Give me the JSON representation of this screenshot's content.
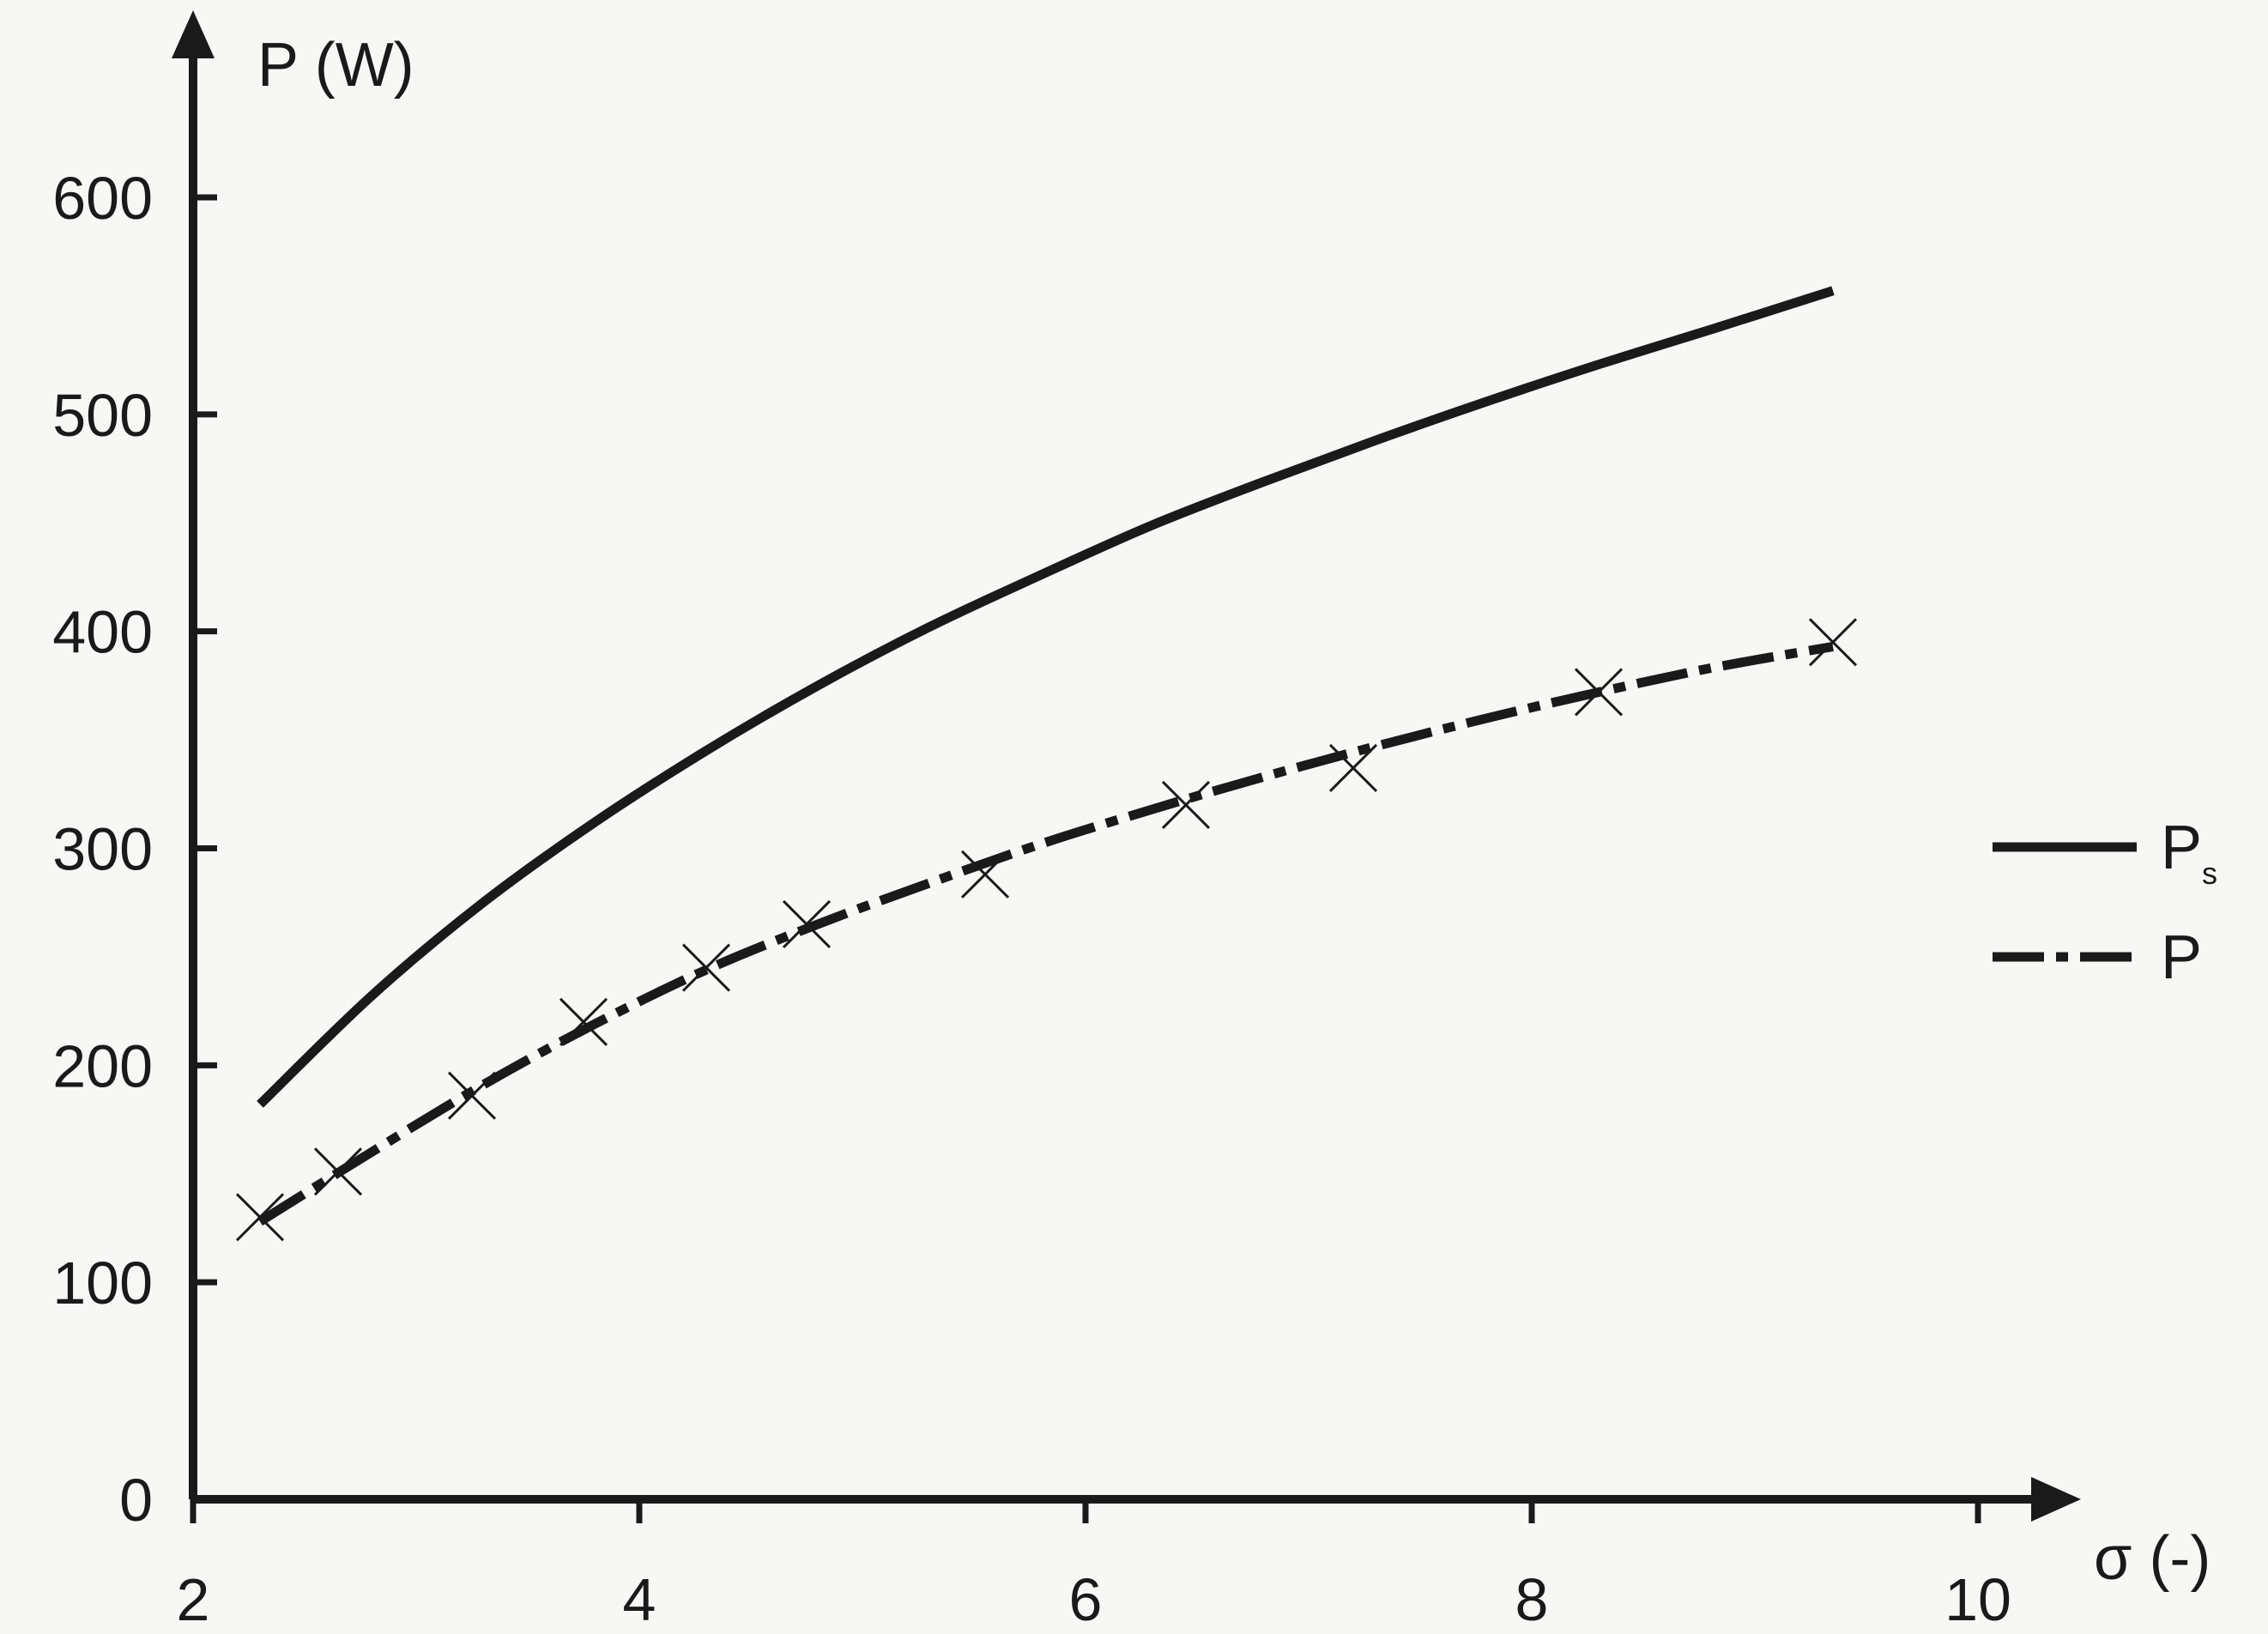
{
  "chart_data": {
    "type": "line",
    "ylabel": "P (W)",
    "xlabel": "σ (-)",
    "xlim": [
      2,
      10
    ],
    "ylim": [
      0,
      600
    ],
    "x_ticks": [
      "2",
      "4",
      "6",
      "8",
      "10"
    ],
    "y_ticks": [
      "0",
      "100",
      "200",
      "300",
      "400",
      "500",
      "600"
    ],
    "grid": false,
    "legend_position": "right",
    "series": [
      {
        "name": "P",
        "name_subscript": "s",
        "style": "solid",
        "color": "#1a1a1a",
        "x": [
          2.3,
          2.8,
          3.3,
          3.8,
          4.3,
          4.8,
          5.3,
          5.8,
          6.3,
          6.8,
          7.3,
          7.8,
          8.3,
          8.8,
          9.35
        ],
        "y": [
          182,
          232,
          275,
          312,
          345,
          375,
          402,
          426,
          449,
          469,
          488,
          506,
          523,
          539,
          557
        ]
      },
      {
        "name": "P",
        "style": "dash-dot",
        "color": "#1a1a1a",
        "x": [
          2.3,
          2.8,
          3.3,
          3.8,
          4.3,
          4.8,
          5.3,
          5.8,
          6.3,
          6.8,
          7.3,
          7.8,
          8.3,
          8.8,
          9.35
        ],
        "y": [
          128,
          160,
          191,
          219,
          244,
          265,
          284,
          302,
          318,
          333,
          347,
          360,
          372,
          383,
          393
        ],
        "markers": {
          "symbol": "x",
          "x": [
            2.3,
            2.65,
            3.25,
            3.75,
            4.3,
            4.75,
            5.55,
            6.45,
            7.2,
            8.3,
            9.35
          ],
          "y": [
            130,
            151,
            186,
            220,
            245,
            265,
            288,
            320,
            337,
            372,
            395
          ]
        }
      }
    ]
  }
}
